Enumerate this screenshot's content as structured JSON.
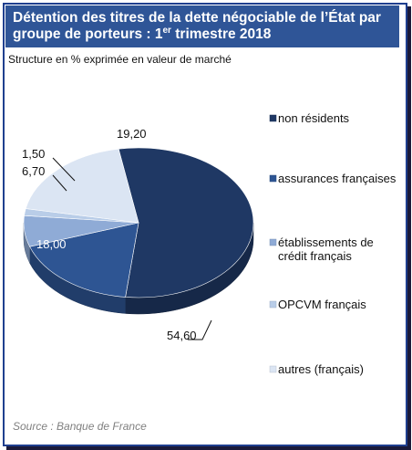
{
  "header": {
    "title_line1": "Détention des titres de la dette négociable de l’État par",
    "title_line2_prefix": "groupe de porteurs : 1",
    "title_line2_sup": "er",
    "title_line2_suffix": " trimestre 2018"
  },
  "subtitle": "Structure en % exprimée en valeur de marché",
  "source": "Source : Banque de France",
  "chart_data": {
    "type": "pie",
    "categories": [
      "non résidents",
      "assurances françaises",
      "établissements de crédit français",
      "OPCVM français",
      "autres (français)"
    ],
    "values": [
      54.6,
      18.0,
      6.7,
      1.5,
      19.2
    ],
    "value_labels": [
      "54,60",
      "18,00",
      "6,70",
      "1,50",
      "19,20"
    ],
    "legend_labels": [
      [
        "non résidents"
      ],
      [
        "assurances françaises"
      ],
      [
        "établissements de",
        "crédit français"
      ],
      [
        "OPCVM français"
      ],
      [
        "autres (français)"
      ]
    ],
    "colors": [
      "#1f3864",
      "#2e5593",
      "#8fabd6",
      "#b9cde8",
      "#dbe5f3"
    ],
    "legend_placement": "right",
    "3d": true
  }
}
